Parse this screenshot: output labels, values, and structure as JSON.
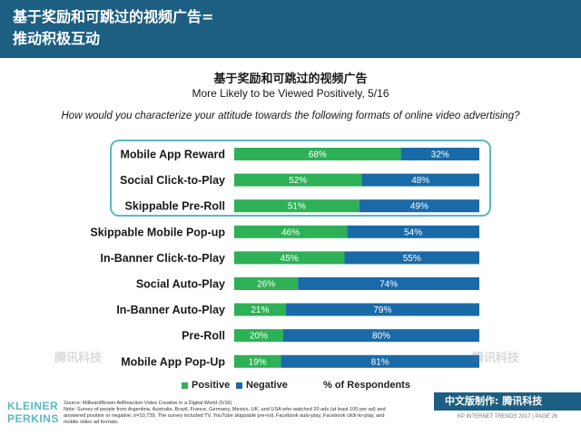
{
  "header": {
    "title": "基于奖励和可跳过的视频广告=\n推动积极互动"
  },
  "chart_data": {
    "type": "bar",
    "stacked": true,
    "orientation": "horizontal",
    "title": "基于奖励和可跳过的视频广告",
    "subtitle": "More Likely to be Viewed Positively, 5/16",
    "question": "How would you characterize your attitude towards the following formats of online video advertising?",
    "xlabel": "% of Respondents",
    "xlim": [
      0,
      100
    ],
    "categories": [
      "Mobile App Reward",
      "Social Click-to-Play",
      "Skippable Pre-Roll",
      "Skippable Mobile Pop-up",
      "In-Banner Click-to-Play",
      "Social Auto-Play",
      "In-Banner Auto-Play",
      "Pre-Roll",
      "Mobile App Pop-Up"
    ],
    "series": [
      {
        "name": "Positive",
        "color": "#2eb156",
        "values": [
          68,
          52,
          51,
          46,
          45,
          26,
          21,
          20,
          19
        ]
      },
      {
        "name": "Negative",
        "color": "#1a6aa8",
        "values": [
          32,
          48,
          49,
          54,
          55,
          74,
          79,
          80,
          81
        ]
      }
    ],
    "highlighted_categories": [
      "Mobile App Reward",
      "Social Click-to-Play",
      "Skippable Pre-Roll"
    ],
    "highlight_color": "#5bb8c7",
    "legend": "bottom",
    "grid": false
  },
  "footer": {
    "brand": "KLEINER PERKINS",
    "source": "Source: MillwardBrown AdReaction Video Creative in a Digital World (5/16)\nNote: Survey of people from Argentina, Australia, Brazil, France, Germany, Mexico, UK, and USA who watched 20 ads (at least 100 per ad) and answered positive or negative, n=10,739. The survey included TV, YouTube skippable pre-roll, Facebook auto-play, Facebook click-to-play, and mobile video ad formats.",
    "translation_credit": "中文版制作: 腾讯科技",
    "page": "KP INTERNET TRENDS 2017  |  PAGE 26",
    "watermark": "腾讯科技"
  }
}
